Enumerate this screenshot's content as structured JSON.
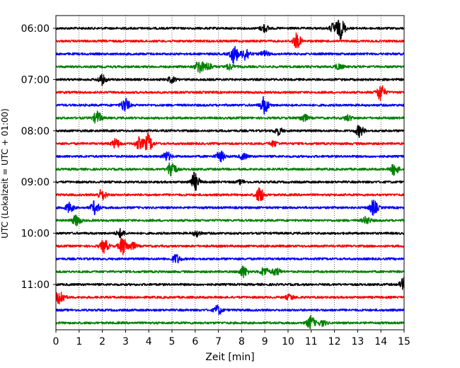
{
  "chart_data": {
    "type": "line",
    "title": "",
    "xlabel": "Zeit  [min]",
    "ylabel": "UTC (Lokalzeit = UTC + 01:00)",
    "xlim": [
      0,
      15
    ],
    "x_ticks": [
      "0",
      "1",
      "2",
      "3",
      "4",
      "5",
      "6",
      "7",
      "8",
      "9",
      "10",
      "11",
      "12",
      "13",
      "14",
      "15"
    ],
    "y_tick_labels": [
      "06:00",
      "07:00",
      "08:00",
      "09:00",
      "10:00",
      "11:00"
    ],
    "grid": "vertical dotted",
    "trace_colors": [
      "#000000",
      "#ff0000",
      "#0000ff",
      "#008000"
    ],
    "traces": [
      {
        "start": "06:00",
        "events": [
          [
            9.0,
            0.4
          ],
          [
            12.0,
            0.6
          ],
          [
            12.3,
            1.0
          ]
        ]
      },
      {
        "start": "06:15",
        "events": [
          [
            10.4,
            0.8
          ]
        ]
      },
      {
        "start": "06:30",
        "events": [
          [
            7.7,
            1.0
          ],
          [
            8.2,
            0.7
          ],
          [
            9.0,
            0.3
          ]
        ]
      },
      {
        "start": "06:45",
        "events": [
          [
            6.2,
            0.8
          ],
          [
            6.6,
            0.4
          ],
          [
            7.5,
            0.3
          ],
          [
            12.2,
            0.3
          ]
        ]
      },
      {
        "start": "07:00",
        "events": [
          [
            2.0,
            0.5
          ],
          [
            5.0,
            0.3
          ]
        ]
      },
      {
        "start": "07:15",
        "events": [
          [
            14.0,
            0.9
          ]
        ]
      },
      {
        "start": "07:30",
        "events": [
          [
            3.0,
            0.8
          ],
          [
            9.0,
            0.9
          ]
        ]
      },
      {
        "start": "07:45",
        "events": [
          [
            1.8,
            0.7
          ],
          [
            10.7,
            0.4
          ],
          [
            12.6,
            0.3
          ]
        ]
      },
      {
        "start": "08:00",
        "events": [
          [
            9.6,
            0.4
          ],
          [
            13.1,
            0.6
          ]
        ]
      },
      {
        "start": "08:15",
        "events": [
          [
            2.6,
            0.5
          ],
          [
            3.6,
            0.6
          ],
          [
            4.0,
            1.0
          ],
          [
            9.4,
            0.3
          ]
        ]
      },
      {
        "start": "08:30",
        "events": [
          [
            4.8,
            0.5
          ],
          [
            7.1,
            0.6
          ],
          [
            8.1,
            0.3
          ]
        ]
      },
      {
        "start": "08:45",
        "events": [
          [
            5.0,
            1.0
          ],
          [
            14.6,
            0.6
          ]
        ]
      },
      {
        "start": "09:00",
        "events": [
          [
            6.0,
            1.0
          ],
          [
            8.0,
            0.2
          ]
        ]
      },
      {
        "start": "09:15",
        "events": [
          [
            2.0,
            0.6
          ],
          [
            8.8,
            0.8
          ]
        ]
      },
      {
        "start": "09:30",
        "events": [
          [
            0.6,
            0.5
          ],
          [
            1.7,
            0.7
          ],
          [
            13.7,
            0.8
          ]
        ]
      },
      {
        "start": "09:45",
        "events": [
          [
            0.9,
            0.6
          ],
          [
            13.4,
            0.4
          ]
        ]
      },
      {
        "start": "10:00",
        "events": [
          [
            2.8,
            0.4
          ],
          [
            6.1,
            0.3
          ]
        ]
      },
      {
        "start": "10:15",
        "events": [
          [
            2.1,
            0.7
          ],
          [
            2.9,
            0.9
          ],
          [
            3.3,
            0.4
          ]
        ]
      },
      {
        "start": "10:30",
        "events": [
          [
            5.2,
            0.5
          ]
        ]
      },
      {
        "start": "10:45",
        "events": [
          [
            8.1,
            0.6
          ],
          [
            9.0,
            0.5
          ],
          [
            9.5,
            0.4
          ]
        ]
      },
      {
        "start": "11:00",
        "events": [
          [
            15.0,
            0.6
          ]
        ]
      },
      {
        "start": "11:15",
        "events": [
          [
            0.2,
            0.9
          ],
          [
            10.1,
            0.3
          ]
        ]
      },
      {
        "start": "11:30",
        "events": [
          [
            7.0,
            0.5
          ]
        ]
      },
      {
        "start": "11:45",
        "events": [
          [
            11.0,
            0.7
          ],
          [
            11.5,
            0.3
          ]
        ]
      }
    ]
  }
}
